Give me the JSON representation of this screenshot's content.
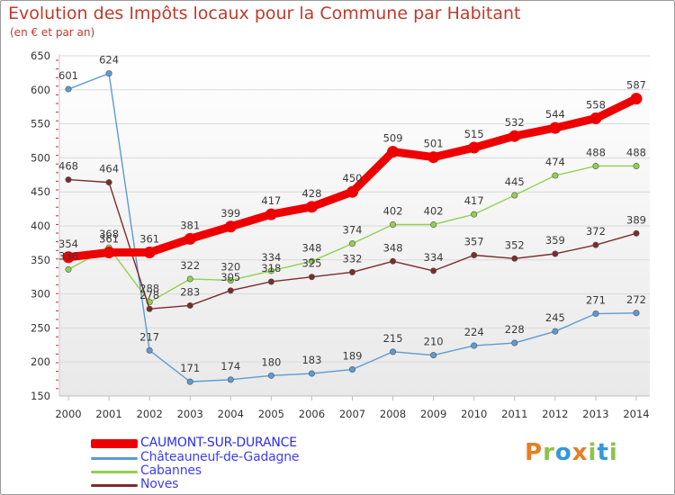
{
  "title": "Evolution des Impôts locaux pour la Commune par Habitant",
  "subtitle": "(en € et par an)",
  "brand": "Proxiti",
  "chart_data": {
    "type": "line",
    "x": [
      "2000",
      "2001",
      "2002",
      "2003",
      "2004",
      "2005",
      "2006",
      "2007",
      "2008",
      "2009",
      "2010",
      "2011",
      "2012",
      "2013",
      "2014"
    ],
    "ylim": [
      150,
      650
    ],
    "yticks": [
      150,
      200,
      250,
      300,
      350,
      400,
      450,
      500,
      550,
      600,
      650
    ],
    "grid": true,
    "legend_position": "bottom-left",
    "series": [
      {
        "name": "CAUMONT-SUR-DURANCE",
        "color": "#ee0000",
        "emphasis": true,
        "values": [
          354,
          361,
          361,
          381,
          399,
          417,
          428,
          450,
          509,
          501,
          515,
          532,
          544,
          558,
          587
        ]
      },
      {
        "name": "Châteauneuf-de-Gadagne",
        "color": "#5b9bd5",
        "values": [
          601,
          624,
          217,
          171,
          174,
          180,
          183,
          189,
          215,
          210,
          224,
          228,
          245,
          271,
          272
        ]
      },
      {
        "name": "Cabannes",
        "color": "#92d050",
        "values": [
          336,
          368,
          288,
          322,
          320,
          334,
          348,
          374,
          402,
          402,
          417,
          445,
          474,
          488,
          488
        ]
      },
      {
        "name": "Noves",
        "color": "#7b2c2c",
        "values": [
          468,
          464,
          278,
          283,
          305,
          318,
          325,
          332,
          348,
          334,
          357,
          352,
          359,
          372,
          389
        ]
      }
    ]
  }
}
